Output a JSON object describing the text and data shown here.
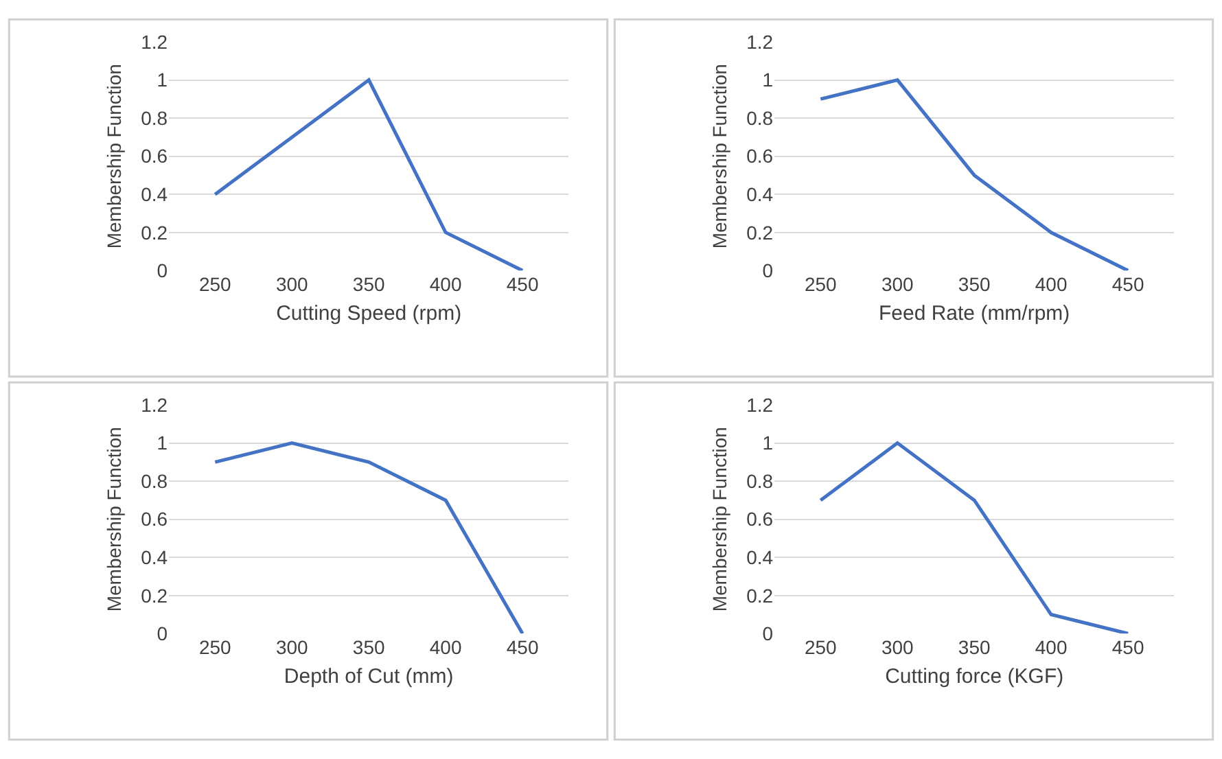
{
  "chart_data": [
    {
      "type": "line",
      "xlabel": "Cutting Speed (rpm)",
      "ylabel": "Membership Function",
      "categories": [
        "250",
        "300",
        "350",
        "400",
        "450"
      ],
      "series": [
        {
          "color": "#4472c4",
          "values": [
            0.4,
            0.7,
            1,
            0.2,
            0
          ]
        }
      ],
      "ylim": [
        0,
        1.2
      ],
      "yticks": [
        0,
        0.2,
        0.4,
        0.6,
        0.8,
        1,
        1.2
      ],
      "grid": "y",
      "marker": "none",
      "line_style": "solid"
    },
    {
      "type": "line",
      "xlabel": "Feed Rate (mm/rpm)",
      "ylabel": "Membership Function",
      "categories": [
        "250",
        "300",
        "350",
        "400",
        "450"
      ],
      "series": [
        {
          "color": "#4472c4",
          "values": [
            0.9,
            1,
            0.5,
            0.2,
            0
          ]
        }
      ],
      "ylim": [
        0,
        1.2
      ],
      "yticks": [
        0,
        0.2,
        0.4,
        0.6,
        0.8,
        1,
        1.2
      ],
      "grid": "y",
      "marker": "none",
      "line_style": "solid"
    },
    {
      "type": "line",
      "xlabel": "Depth of Cut (mm)",
      "ylabel": "Membership Function",
      "categories": [
        "250",
        "300",
        "350",
        "400",
        "450"
      ],
      "series": [
        {
          "color": "#4472c4",
          "values": [
            0.9,
            1,
            0.9,
            0.7,
            0
          ]
        }
      ],
      "ylim": [
        0,
        1.2
      ],
      "yticks": [
        0,
        0.2,
        0.4,
        0.6,
        0.8,
        1,
        1.2
      ],
      "grid": "y",
      "marker": "none",
      "line_style": "solid"
    },
    {
      "type": "line",
      "xlabel": "Cutting force (KGF)",
      "ylabel": "Membership Function",
      "categories": [
        "250",
        "300",
        "350",
        "400",
        "450"
      ],
      "series": [
        {
          "color": "#4472c4",
          "values": [
            0.7,
            1,
            0.7,
            0.1,
            0
          ]
        }
      ],
      "ylim": [
        0,
        1.2
      ],
      "yticks": [
        0,
        0.2,
        0.4,
        0.6,
        0.8,
        1,
        1.2
      ],
      "grid": "y",
      "marker": "none",
      "line_style": "solid"
    }
  ]
}
